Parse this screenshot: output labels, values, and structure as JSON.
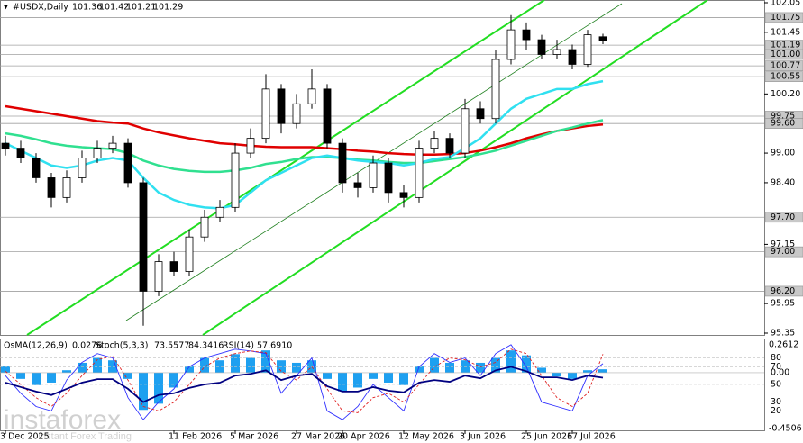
{
  "chart_data": {
    "type": "candlestick",
    "title": "#USDX,Daily",
    "categories": [
      "3 Dec 2025",
      null,
      null,
      null,
      null,
      null,
      null,
      null,
      null,
      null,
      null,
      "11 Feb 2026",
      null,
      null,
      null,
      "5 Mar 2026",
      null,
      null,
      null,
      "27 Mar 2026",
      null,
      null,
      "20 Apr 2026",
      null,
      null,
      null,
      "12 May 2026",
      null,
      null,
      null,
      "3 Jun 2026",
      null,
      null,
      null,
      "25 Jun 2026",
      null,
      null,
      "17 Jul 2026",
      null,
      null
    ],
    "open": [
      99.2,
      99.1,
      98.9,
      98.5,
      98.1,
      98.5,
      98.9,
      99.1,
      99.2,
      98.4,
      96.2,
      96.8,
      96.6,
      97.3,
      97.7,
      97.9,
      99.0,
      99.3,
      100.3,
      99.6,
      100.0,
      100.3,
      99.2,
      98.4,
      98.3,
      98.8,
      98.2,
      98.1,
      99.1,
      99.3,
      99.0,
      99.9,
      99.7,
      100.9,
      101.5,
      101.3,
      101.0,
      101.1,
      100.8,
      101.36
    ],
    "high": [
      99.35,
      99.25,
      99.0,
      98.6,
      98.65,
      99.05,
      99.25,
      99.35,
      99.3,
      98.5,
      96.95,
      97.0,
      97.45,
      97.85,
      98.05,
      99.2,
      99.5,
      100.6,
      100.4,
      100.2,
      100.7,
      100.4,
      99.3,
      98.6,
      98.95,
      98.9,
      98.35,
      99.25,
      99.45,
      99.4,
      100.1,
      100.05,
      101.1,
      101.8,
      101.65,
      101.4,
      101.3,
      101.2,
      101.5,
      101.42
    ],
    "low": [
      98.95,
      98.8,
      98.4,
      97.9,
      98.0,
      98.4,
      98.8,
      99.0,
      98.3,
      95.5,
      96.1,
      96.5,
      96.5,
      97.2,
      97.6,
      97.8,
      98.9,
      99.2,
      99.4,
      99.5,
      99.9,
      99.1,
      98.2,
      98.1,
      98.2,
      98.0,
      97.9,
      98.0,
      99.0,
      98.9,
      98.9,
      99.6,
      99.6,
      100.8,
      101.1,
      100.9,
      100.9,
      100.7,
      100.75,
      101.21
    ],
    "close": [
      99.1,
      98.9,
      98.5,
      98.1,
      98.5,
      98.9,
      99.1,
      99.2,
      98.4,
      96.2,
      96.8,
      96.6,
      97.3,
      97.7,
      97.9,
      99.0,
      99.3,
      100.3,
      99.6,
      100.0,
      100.3,
      99.2,
      98.4,
      98.3,
      98.8,
      98.2,
      98.1,
      99.1,
      99.3,
      99.0,
      99.9,
      99.7,
      100.9,
      101.5,
      101.3,
      101.0,
      101.1,
      100.8,
      101.4,
      101.29
    ],
    "color_up": "#ffffff",
    "color_down": "#000000",
    "ylim": [
      95.35,
      102.05
    ],
    "yticks": [
      102.05,
      101.45,
      {
        "value": 100.2,
        "label": "100.20"
      },
      {
        "value": 99,
        "label": "99.00"
      },
      {
        "value": 98.4,
        "label": "98.40"
      },
      97.15,
      95.95,
      95.35
    ],
    "levels": [
      101.75,
      101.19,
      {
        "value": 101,
        "label": "101.00"
      },
      100.77,
      100.55,
      99.75,
      {
        "value": 99.6,
        "label": "99.60"
      },
      {
        "value": 97.7,
        "label": "97.70"
      },
      {
        "value": 97,
        "label": "97.00"
      },
      {
        "value": 96.2,
        "label": "96.20"
      }
    ],
    "moving_averages": [
      {
        "color": "#e00000",
        "values": [
          99.95,
          99.9,
          99.85,
          99.8,
          99.75,
          99.7,
          99.65,
          99.62,
          99.6,
          99.5,
          99.42,
          99.36,
          99.3,
          99.25,
          99.2,
          99.18,
          99.15,
          99.13,
          99.12,
          99.12,
          99.12,
          99.1,
          99.08,
          99.05,
          99.03,
          99.0,
          98.98,
          98.97,
          98.97,
          98.98,
          99.0,
          99.05,
          99.12,
          99.2,
          99.3,
          99.38,
          99.45,
          99.5,
          99.55,
          99.58
        ]
      },
      {
        "color": "#30e090",
        "values": [
          99.4,
          99.35,
          99.28,
          99.2,
          99.15,
          99.12,
          99.1,
          99.08,
          99.0,
          98.85,
          98.75,
          98.68,
          98.64,
          98.62,
          98.62,
          98.65,
          98.7,
          98.78,
          98.82,
          98.88,
          98.92,
          98.92,
          98.9,
          98.87,
          98.85,
          98.82,
          98.8,
          98.8,
          98.84,
          98.88,
          98.92,
          98.98,
          99.05,
          99.15,
          99.25,
          99.35,
          99.45,
          99.52,
          99.6,
          99.67
        ]
      },
      {
        "color": "#30e0f0",
        "values": [
          99.2,
          99.05,
          98.9,
          98.75,
          98.7,
          98.75,
          98.85,
          98.9,
          98.85,
          98.5,
          98.2,
          98.05,
          97.95,
          97.9,
          97.88,
          97.95,
          98.2,
          98.45,
          98.6,
          98.75,
          98.9,
          98.95,
          98.9,
          98.85,
          98.82,
          98.8,
          98.75,
          98.8,
          98.88,
          98.92,
          99.1,
          99.3,
          99.6,
          99.9,
          100.1,
          100.2,
          100.3,
          100.3,
          100.4,
          100.46
        ]
      }
    ],
    "indicators": {
      "osma": {
        "name": "OsMA(12,26,9)",
        "color": "#1ea0f0",
        "values": [
          0.05,
          -0.05,
          -0.1,
          -0.08,
          0.02,
          0.08,
          0.12,
          0.1,
          -0.05,
          -0.3,
          -0.25,
          -0.12,
          0.05,
          0.12,
          0.1,
          0.15,
          0.12,
          0.18,
          0.1,
          0.08,
          0.1,
          -0.05,
          -0.15,
          -0.12,
          -0.05,
          -0.08,
          -0.1,
          0.05,
          0.12,
          0.08,
          0.1,
          0.08,
          0.12,
          0.18,
          0.14,
          0.04,
          -0.03,
          -0.05,
          0.02,
          0.0276
        ],
        "ylim": [
          -0.4506,
          0.2612
        ],
        "yticks": [
          {
            "value": 0,
            "label": "0.00"
          }
        ]
      },
      "stoch": {
        "name": "Stoch(5,3,3)",
        "main": {
          "color": "#3030ff",
          "values": [
            60,
            40,
            25,
            20,
            55,
            75,
            85,
            80,
            35,
            10,
            30,
            45,
            70,
            80,
            85,
            90,
            88,
            85,
            40,
            60,
            80,
            20,
            10,
            25,
            50,
            35,
            20,
            70,
            85,
            75,
            80,
            60,
            85,
            95,
            70,
            30,
            25,
            20,
            60,
            73.5577
          ]
        },
        "signal": {
          "color": "#e02020",
          "values": [
            65,
            50,
            35,
            25,
            40,
            60,
            78,
            82,
            55,
            25,
            20,
            30,
            50,
            70,
            80,
            85,
            88,
            86,
            65,
            55,
            70,
            45,
            20,
            18,
            35,
            40,
            30,
            50,
            70,
            80,
            78,
            70,
            75,
            90,
            85,
            60,
            35,
            25,
            40,
            84.3416
          ]
        }
      },
      "rsi": {
        "name": "RSI(14)",
        "color": "#000080",
        "values": [
          52,
          47,
          42,
          38,
          45,
          52,
          56,
          56,
          45,
          30,
          38,
          40,
          46,
          50,
          52,
          60,
          62,
          66,
          55,
          60,
          62,
          48,
          42,
          42,
          47,
          43,
          41,
          52,
          55,
          53,
          60,
          57,
          66,
          70,
          65,
          58,
          58,
          55,
          60,
          57.691
        ],
        "value_labels": [
          null,
          null,
          null,
          null,
          null,
          null,
          null,
          null,
          null,
          null,
          null,
          null,
          null,
          null,
          null,
          null,
          null,
          null,
          null,
          null,
          null,
          null,
          null,
          null,
          null,
          null,
          null,
          null,
          null,
          null,
          null,
          null,
          null,
          null,
          null,
          null,
          null,
          null,
          null,
          "57.6910"
        ]
      },
      "ylim": [
        0,
        100
      ],
      "yticks": [
        20,
        30,
        50,
        70,
        80
      ]
    },
    "watermark": {
      "brand": "instaforex",
      "tagline": "Instant Forex Trading"
    }
  }
}
